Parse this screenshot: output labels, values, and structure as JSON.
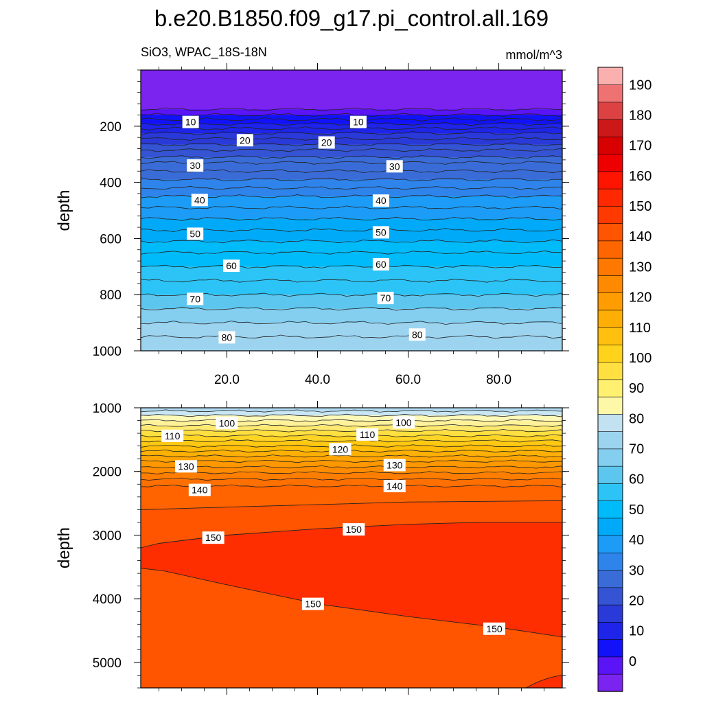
{
  "chart_data": {
    "type": "contour",
    "title": "b.e20.B1850.f09_g17.pi_control.all.169",
    "variable_label": "SiO3, WPAC_18S-18N",
    "units_label": "mmol/m^3",
    "colorbar": {
      "levels": [
        0,
        10,
        20,
        30,
        40,
        50,
        60,
        70,
        80,
        90,
        100,
        110,
        120,
        130,
        140,
        150,
        160,
        170,
        180,
        190
      ],
      "tick_labels": [
        "0",
        "10",
        "20",
        "30",
        "40",
        "50",
        "60",
        "70",
        "80",
        "90",
        "100",
        "110",
        "120",
        "130",
        "140",
        "150",
        "160",
        "170",
        "180",
        "190"
      ],
      "colors": [
        "#7b24f0",
        "#5a14f5",
        "#1212f8",
        "#1e24e8",
        "#2a3ad8",
        "#3454d3",
        "#3a6cd8",
        "#2e84ea",
        "#1c9cf6",
        "#00aaf8",
        "#00bbfa",
        "#2cc4f6",
        "#5cc6ee",
        "#84cef0",
        "#9cd4f0",
        "#c2e2f2",
        "#fdf8a8",
        "#fff070",
        "#ffe040",
        "#ffd21c",
        "#ffc010",
        "#ffae06",
        "#ff9c02",
        "#ff8a00",
        "#ff7800",
        "#ff6600",
        "#ff5400",
        "#ff3a00",
        "#ff2800",
        "#ff1400",
        "#ee0000",
        "#d80000",
        "#cc1818",
        "#dc4242",
        "#ee7272",
        "#fbb0b0"
      ]
    },
    "x_axis": {
      "range": [
        1,
        94
      ],
      "ticks": [
        20,
        40,
        60,
        80
      ],
      "tick_labels": [
        "20.0",
        "40.0",
        "60.0",
        "80.0"
      ]
    },
    "panels": [
      {
        "name": "upper",
        "ylabel": "depth",
        "ylim": [
          0,
          1000
        ],
        "yticks": [
          200,
          400,
          600,
          800,
          1000
        ],
        "ytick_labels": [
          "200",
          "400",
          "600",
          "800",
          "1000"
        ],
        "contour_depths": [
          140,
          160,
          176,
          192,
          208,
          225,
          245,
          265,
          285,
          310,
          330,
          360,
          390,
          420,
          450,
          490,
          530,
          570,
          610,
          650,
          700,
          750,
          800,
          850,
          900,
          950,
          1000
        ],
        "contour_labels": [
          {
            "text": "10",
            "x": 12,
            "depth": 185
          },
          {
            "text": "10",
            "x": 49,
            "depth": 185
          },
          {
            "text": "20",
            "x": 24,
            "depth": 250
          },
          {
            "text": "20",
            "x": 42,
            "depth": 258
          },
          {
            "text": "30",
            "x": 13,
            "depth": 340
          },
          {
            "text": "30",
            "x": 57,
            "depth": 343
          },
          {
            "text": "40",
            "x": 14,
            "depth": 463
          },
          {
            "text": "40",
            "x": 54,
            "depth": 465
          },
          {
            "text": "50",
            "x": 13,
            "depth": 583
          },
          {
            "text": "50",
            "x": 54,
            "depth": 578
          },
          {
            "text": "60",
            "x": 21,
            "depth": 697
          },
          {
            "text": "60",
            "x": 54,
            "depth": 692
          },
          {
            "text": "70",
            "x": 13,
            "depth": 815
          },
          {
            "text": "70",
            "x": 55,
            "depth": 812
          },
          {
            "text": "80",
            "x": 20,
            "depth": 952
          },
          {
            "text": "80",
            "x": 62,
            "depth": 942
          }
        ]
      },
      {
        "name": "lower",
        "ylabel": "depth",
        "ylim": [
          1000,
          5400
        ],
        "yticks": [
          1000,
          2000,
          3000,
          4000,
          5000
        ],
        "ytick_labels": [
          "1000",
          "2000",
          "3000",
          "4000",
          "5000"
        ],
        "contour_depths": [
          1050,
          1120,
          1200,
          1280,
          1360,
          1440,
          1520,
          1600,
          1680,
          1760,
          1840,
          1930,
          2020,
          2120,
          2230
        ],
        "contour_labels": [
          {
            "text": "100",
            "x": 20,
            "depth": 1240
          },
          {
            "text": "100",
            "x": 59,
            "depth": 1230
          },
          {
            "text": "110",
            "x": 8,
            "depth": 1440
          },
          {
            "text": "110",
            "x": 51,
            "depth": 1420
          },
          {
            "text": "120",
            "x": 45,
            "depth": 1650
          },
          {
            "text": "130",
            "x": 11,
            "depth": 1920
          },
          {
            "text": "130",
            "x": 57,
            "depth": 1900
          },
          {
            "text": "140",
            "x": 14,
            "depth": 2290
          },
          {
            "text": "140",
            "x": 57,
            "depth": 2230
          },
          {
            "text": "150",
            "x": 17,
            "depth": 3040
          },
          {
            "text": "150",
            "x": 48,
            "depth": 2910
          },
          {
            "text": "150",
            "x": 39,
            "depth": 4080
          },
          {
            "text": "150",
            "x": 79,
            "depth": 4470
          }
        ]
      }
    ]
  }
}
